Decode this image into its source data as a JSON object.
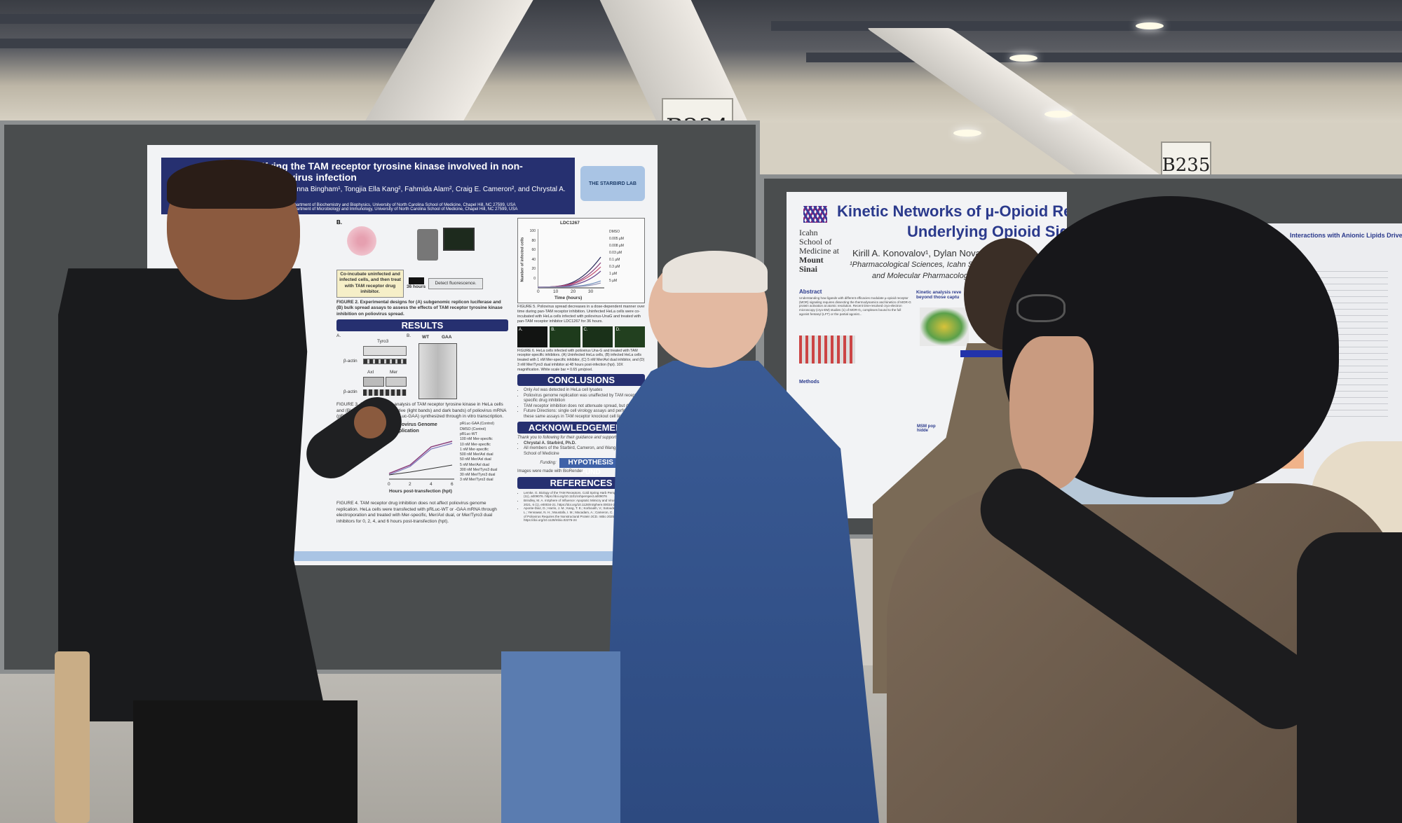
{
  "signs": {
    "left": "B234",
    "right": "B235"
  },
  "left_poster": {
    "title": "Identifying the TAM receptor tyrosine kinase involved in non-enveloped virus infection",
    "authors": "Moran¹, Johnna Bingham¹, Tongjia Ella Kang², Fahmida Alam², Craig E. Cameron², and Chrystal A. Starbird¹",
    "affiliation1": "¹Department of Biochemistry and Biophysics, University of North Carolina School of Medicine, Chapel Hill, NC 27599, USA",
    "affiliation2": "²Department of Microbiology and Immunology, University of North Carolina School of Medicine, Chapel Hill, NC 27599, USA",
    "lab_logo": "THE STARBIRD LAB",
    "fig2": {
      "panel": "B.",
      "step1": "Co-incubate uninfected and infected cells, and then treat with TAM receptor drug inhibitor.",
      "arrow_label": "36 hours",
      "step2": "Detect fluorescence.",
      "caption_bold": "FIGURE 2. Experimental designs for (A) subgenomic replicon luciferase and (B) bulk spread assays to assess the effects of TAM receptor tyrosine kinase inhibition on poliovirus spread."
    },
    "results": "RESULTS",
    "fig3": {
      "panel_a": "A.",
      "panel_b": "B.",
      "tyro3": "Tyro3",
      "beta_actin": "β-actin",
      "axl": "Axl",
      "mer": "Mer",
      "wt": "WT",
      "gaa": "GAA",
      "caption": "FIGURE 3. (A) Western blot analysis of TAM receptor tyrosine kinase in HeLa cells and (B) RNA agarose gel of native (light bands) and dark bands) of poliovirus mRNA (pRLuc-WT) and poliovirus (pRLuc-GAA) synthesized through in vitro transcription."
    },
    "fig4": {
      "title": "Poliovirus Genome Replication",
      "xlabel": "Hours post-transfection (hpt)",
      "xticks": [
        "0",
        "2",
        "4",
        "6"
      ],
      "legend": [
        "pRLuc-GAA (Control)",
        "DMSO (Control)",
        "pRLuc-WT",
        "100 nM Mer-specific",
        "10 nM Mer-specific",
        "1 nM Mer-specific",
        "500 nM Mer/Axl dual",
        "50 nM Mer/Axl dual",
        "5 nM Mer/Axl dual",
        "300 nM Mer/Tyro3 dual",
        "30 nM Mer/Tyro3 dual",
        "3 nM Mer/Tyro3 dual"
      ],
      "caption": "FIGURE 4. TAM receptor drug inhibition does not affect poliovirus genome replication. HeLa cells were transfected with pRLuc-WT or -GAA mRNA through electroporation and treated with Mer-specific, Mer/Axl dual, or Mer/Tyro3 dual inhibitors for 0, 2, 4, and 6 hours post-transfection (hpt)."
    },
    "fig5": {
      "title": "LDC1267",
      "ylabel": "Number of infected cells",
      "xlabel": "Time (hours)",
      "yticks": [
        "100",
        "80",
        "60",
        "40",
        "20",
        "0"
      ],
      "xticks": [
        "0",
        "10",
        "20",
        "30"
      ],
      "legend": [
        "DMSO",
        "0.005 µM",
        "0.008 µM",
        "0.03 µM",
        "0.1 µM",
        "0.3 µM",
        "1 µM",
        "5 µM"
      ],
      "caption": "FIGURE 5. Poliovirus spread decreases in a dose-dependent manner over time during pan-TAM receptor inhibition. Uninfected HeLa cells were co-incubated with HeLa cells infected with poliovirus-UnaG and treated with pan-TAM receptor inhibitor LDC1267 for 36 hours."
    },
    "fig6": {
      "panels": [
        "A.",
        "B.",
        "C.",
        "D."
      ],
      "caption": "FIGURE 6. HeLa cells infected with poliovirus Una-G and treated with TAM receptor-specific inhibitors. (A) Uninfected HeLa cells, (B) infected HeLa cells treated with 1 nM Mer-specific inhibitor, (C) 5 nM Mer/Axl dual inhibitor, and (D) 3 nM Mer/Tyro3 dual inhibitor at 48 hours post-infection (hpi). 10X magnification. White scale bar = 0.65 µm/pixel."
    },
    "conclusions": {
      "header": "CONCLUSIONS",
      "items": [
        "Only Axl was detected in HeLa cell lysates",
        "Poliovirus genome replication was unaffected by TAM receptor-specific drug inhibition",
        "TAM receptor inhibition does not attenuate spread, but delays it",
        "Future Directions: single cell virology assays and performing these same assays in TAM receptor knockout cell lines"
      ]
    },
    "acknowledgements": {
      "header": "ACKNOWLEDGEMENTS",
      "intro": "Thank you to following for their guidance and support:",
      "items": [
        "Chrystal A. Starbird, Ph.D.",
        "All members of the Starbird, Cameron, and Wang labs at UNC School of Medicine"
      ],
      "funding_label": "Funding:",
      "funding_logo": "HYPOTHESIS FUND",
      "biorender": "Images were made with BioRender"
    },
    "references": {
      "header": "REFERENCES",
      "items": [
        "Lemke, G. Biology of the TAM Receptors. Cold Spring Harb Perspect Biol. 2013, 5 (11), a009076. https://doi.org/10.1101/cshperspect.a009076",
        "Brindley, M. A. mSphere of Influence: Apoptotic Mimicry and Virus Entry. mSphere 2021, 6 (1), e00034-21. https://doi.org/10.1128/mSphere.00034-21",
        "Aponte-Diaz, D.; Harris, J. M.; Kang, T. E.; Korboukh, V.; Sotoudegan, M. S.; Gray, J. L.; Yennawar, N. H.; Moustafa, I. M.; Macadam, A.; Cameron, C. E. Non-Lytic Spread of Poliovirus Requires the Nonstructural Protein 3CD. mBio 2025, 16 (1), e02276-24. https://doi.org/10.1128/mbio.02276-24"
      ]
    }
  },
  "right_poster": {
    "title_line1": "Kinetic Networks of µ-Opioid Receptor–G",
    "title_line2": "Underlying Opioid Signali",
    "institution": [
      "Icahn",
      "School of",
      "Medicine at",
      "Mount",
      "Sinai"
    ],
    "authors": "Kirill A. Konovalov¹, Dylan Novack¹, Day",
    "affiliation_line1": "¹Pharmacological Sciences, Icahn School of Me",
    "affiliation_line2": "and Molecular Pharmacology, Hous",
    "abstract_header": "Abstract",
    "abstract_text": "Understanding how ligands with different efficacies modulate µ-opioid receptor (MOR) signaling requires dissecting the thermodynamics and kinetics of MOR-G protein activation at atomic resolution. Recent time-resolved cryo-electron microscopy (cryo-EM) studies (1) of MOR-G₁ complexes bound to the full agonist fentanyl (LFT) or the partial agonist...",
    "kinetic_header": "Kinetic analysis reve beyond those captu",
    "methods_header": "Methods",
    "msm_header": "MSM pop hidde"
  },
  "third_poster": {
    "title": "Interactions with Anionic Lipids Drive Me"
  },
  "colors": {
    "poster_navy": "#263070",
    "poster_accent": "#2b3a8c",
    "board": "#4a4d4e"
  }
}
